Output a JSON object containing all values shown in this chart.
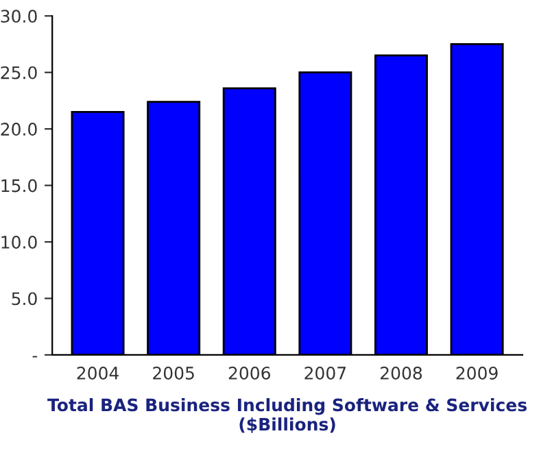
{
  "chart_data": {
    "type": "bar",
    "xlabel": "Total BAS Business Including Software & Services ($Billions)",
    "categories": [
      "2004",
      "2005",
      "2006",
      "2007",
      "2008",
      "2009"
    ],
    "values": [
      21.5,
      22.4,
      23.6,
      25.0,
      26.5,
      27.5
    ],
    "color": "#0000ff",
    "ylim": [
      0,
      30
    ],
    "yticks": [
      {
        "value": 0,
        "label": "-"
      },
      {
        "value": 5,
        "label": "5.0"
      },
      {
        "value": 10,
        "label": "10.0"
      },
      {
        "value": 15,
        "label": "15.0"
      },
      {
        "value": 20,
        "label": "20.0"
      },
      {
        "value": 25,
        "label": "25.0"
      },
      {
        "value": 30,
        "label": "30.0"
      }
    ],
    "grid": false,
    "legend": false
  }
}
